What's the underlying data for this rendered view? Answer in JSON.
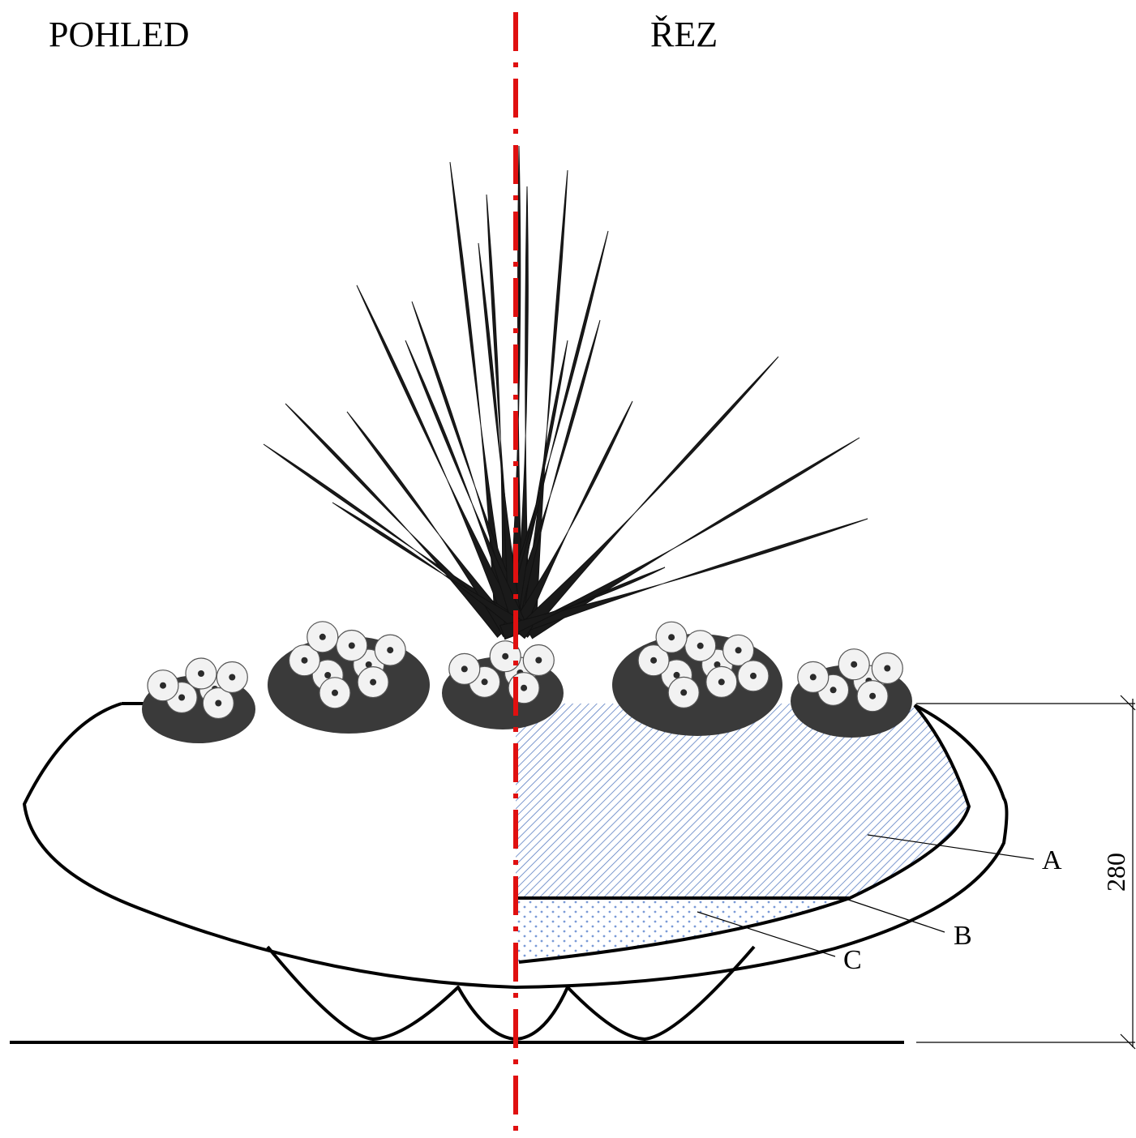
{
  "titles": {
    "view": "POHLED",
    "section": "ŘEZ"
  },
  "labels": {
    "a": "A",
    "b": "B",
    "c": "C"
  },
  "dimension": {
    "height": "280"
  },
  "colors": {
    "axis": "#e01010",
    "hatch": "#5b7fc2",
    "dots": "#7a9ad6",
    "outline": "#000000"
  }
}
